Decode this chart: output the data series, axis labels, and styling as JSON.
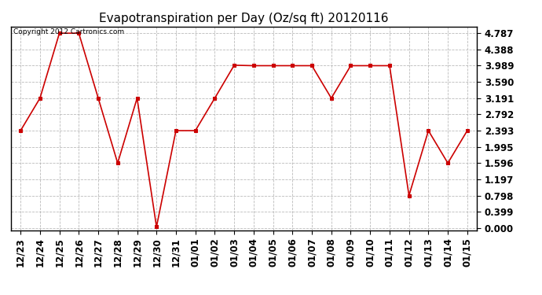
{
  "title": "Evapotranspiration per Day (Oz/sq ft) 20120116",
  "copyright": "Copyright 2012 Cartronics.com",
  "x_labels": [
    "12/23",
    "12/24",
    "12/25",
    "12/26",
    "12/27",
    "12/28",
    "12/29",
    "12/30",
    "12/31",
    "01/01",
    "01/02",
    "01/03",
    "01/04",
    "01/05",
    "01/06",
    "01/07",
    "01/08",
    "01/09",
    "01/10",
    "01/11",
    "01/12",
    "01/13",
    "01/14",
    "01/15"
  ],
  "y_values": [
    2.393,
    3.191,
    4.787,
    4.787,
    3.191,
    1.596,
    3.191,
    0.03,
    2.393,
    2.393,
    3.191,
    4.0,
    3.989,
    3.989,
    3.989,
    3.989,
    3.191,
    3.989,
    3.989,
    3.989,
    0.798,
    2.393,
    1.596,
    2.393
  ],
  "y_ticks": [
    0.0,
    0.399,
    0.798,
    1.197,
    1.596,
    1.995,
    2.393,
    2.792,
    3.191,
    3.59,
    3.989,
    4.388,
    4.787
  ],
  "ylim_min": -0.05,
  "ylim_max": 4.95,
  "line_color": "#cc0000",
  "marker": "s",
  "marker_size": 3,
  "grid_color": "#aaaaaa",
  "background_color": "#ffffff",
  "title_fontsize": 11,
  "copyright_fontsize": 6.5,
  "tick_fontsize": 8.5,
  "fig_width": 6.9,
  "fig_height": 3.75,
  "dpi": 100
}
